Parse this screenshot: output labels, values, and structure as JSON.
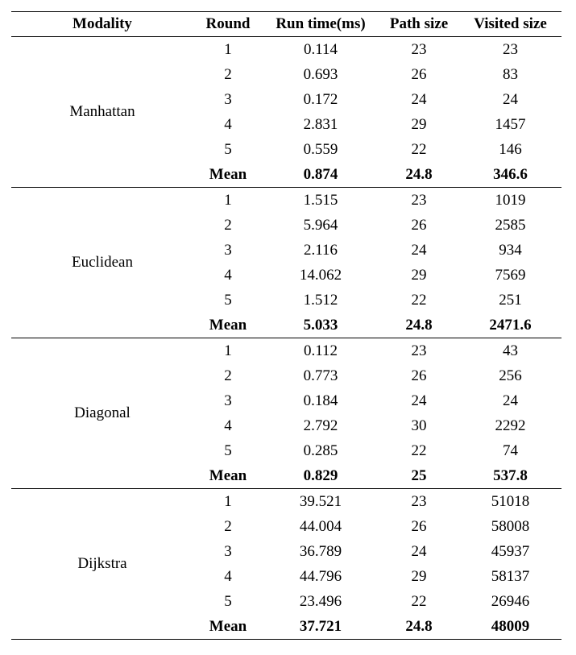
{
  "table": {
    "headers": [
      "Modality",
      "Round",
      "Run time(ms)",
      "Path size",
      "Visited size"
    ],
    "groups": [
      {
        "modality": "Manhattan",
        "rows": [
          [
            "1",
            "0.114",
            "23",
            "23"
          ],
          [
            "2",
            "0.693",
            "26",
            "83"
          ],
          [
            "3",
            "0.172",
            "24",
            "24"
          ],
          [
            "4",
            "2.831",
            "29",
            "1457"
          ],
          [
            "5",
            "0.559",
            "22",
            "146"
          ]
        ],
        "mean": [
          "Mean",
          "0.874",
          "24.8",
          "346.6"
        ]
      },
      {
        "modality": "Euclidean",
        "rows": [
          [
            "1",
            "1.515",
            "23",
            "1019"
          ],
          [
            "2",
            "5.964",
            "26",
            "2585"
          ],
          [
            "3",
            "2.116",
            "24",
            "934"
          ],
          [
            "4",
            "14.062",
            "29",
            "7569"
          ],
          [
            "5",
            "1.512",
            "22",
            "251"
          ]
        ],
        "mean": [
          "Mean",
          "5.033",
          "24.8",
          "2471.6"
        ]
      },
      {
        "modality": "Diagonal",
        "rows": [
          [
            "1",
            "0.112",
            "23",
            "43"
          ],
          [
            "2",
            "0.773",
            "26",
            "256"
          ],
          [
            "3",
            "0.184",
            "24",
            "24"
          ],
          [
            "4",
            "2.792",
            "30",
            "2292"
          ],
          [
            "5",
            "0.285",
            "22",
            "74"
          ]
        ],
        "mean": [
          "Mean",
          "0.829",
          "25",
          "537.8"
        ]
      },
      {
        "modality": "Dijkstra",
        "rows": [
          [
            "1",
            "39.521",
            "23",
            "51018"
          ],
          [
            "2",
            "44.004",
            "26",
            "58008"
          ],
          [
            "3",
            "36.789",
            "24",
            "45937"
          ],
          [
            "4",
            "44.796",
            "29",
            "58137"
          ],
          [
            "5",
            "23.496",
            "22",
            "26946"
          ]
        ],
        "mean": [
          "Mean",
          "37.721",
          "24.8",
          "48009"
        ]
      }
    ]
  }
}
